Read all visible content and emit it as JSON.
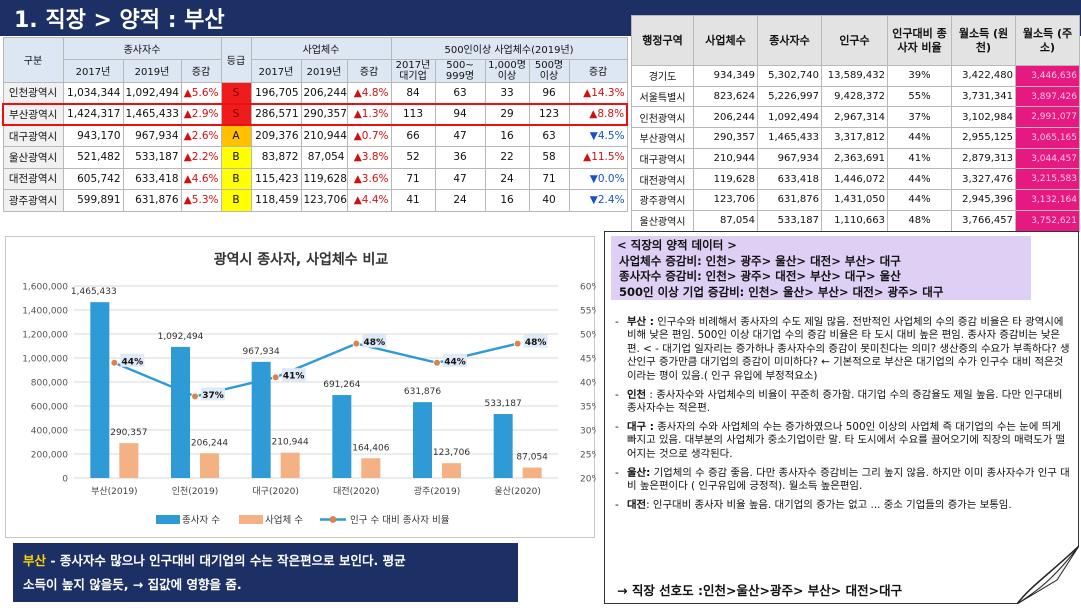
{
  "title": "1. 직장 > 양적 : 부산",
  "left_table": {
    "h_region": "구분",
    "h_employees": "종사자수",
    "h_grade": "등급",
    "h_businesses": "사업체수",
    "h_large": "500인이상 사업체수(2019년)",
    "h_y2017": "2017년",
    "h_y2019": "2019년",
    "h_change": "증감",
    "h_large_a": "2017년 대기업",
    "h_large_b": "500~ 999명",
    "h_large_c": "1,000명 이상",
    "h_large_d": "500명 이상",
    "rows": [
      {
        "region": "인천광역시",
        "e17": "1,034,344",
        "e19": "1,092,494",
        "ec": "▲5.6%",
        "grade": "S",
        "b17": "196,705",
        "b19": "206,244",
        "bc": "▲4.8%",
        "l1": "84",
        "l2": "63",
        "l3": "33",
        "l4": "96",
        "lc": "▲14.3%"
      },
      {
        "region": "부산광역시",
        "e17": "1,424,317",
        "e19": "1,465,433",
        "ec": "▲2.9%",
        "grade": "S",
        "b17": "286,571",
        "b19": "290,357",
        "bc": "▲1.3%",
        "l1": "113",
        "l2": "94",
        "l3": "29",
        "l4": "123",
        "lc": "▲8.8%"
      },
      {
        "region": "대구광역시",
        "e17": "943,170",
        "e19": "967,934",
        "ec": "▲2.6%",
        "grade": "A",
        "b17": "209,376",
        "b19": "210,944",
        "bc": "▲0.7%",
        "l1": "66",
        "l2": "47",
        "l3": "16",
        "l4": "63",
        "lc": "▼4.5%"
      },
      {
        "region": "울산광역시",
        "e17": "521,482",
        "e19": "533,187",
        "ec": "▲2.2%",
        "grade": "B",
        "b17": "83,872",
        "b19": "87,054",
        "bc": "▲3.8%",
        "l1": "52",
        "l2": "36",
        "l3": "22",
        "l4": "58",
        "lc": "▲11.5%"
      },
      {
        "region": "대전광역시",
        "e17": "605,742",
        "e19": "633,418",
        "ec": "▲4.6%",
        "grade": "B",
        "b17": "115,423",
        "b19": "119,628",
        "bc": "▲3.6%",
        "l1": "71",
        "l2": "47",
        "l3": "24",
        "l4": "71",
        "lc": "▼0.0%"
      },
      {
        "region": "광주광역시",
        "e17": "599,891",
        "e19": "631,876",
        "ec": "▲5.3%",
        "grade": "B",
        "b17": "118,459",
        "b19": "123,706",
        "bc": "▲4.4%",
        "l1": "41",
        "l2": "24",
        "l3": "16",
        "l4": "40",
        "lc": "▼2.4%"
      }
    ]
  },
  "right_table": {
    "headers": [
      "행정구역",
      "사업체수",
      "종사자수",
      "인구수",
      "인구대비 종사자 비율",
      "월소득 (원천)",
      "월소득 (주소)"
    ],
    "rows": [
      [
        "경기도",
        "934,349",
        "5,302,740",
        "13,589,432",
        "39%",
        "3,422,480",
        "3,446,636"
      ],
      [
        "서울특별시",
        "823,624",
        "5,226,997",
        "9,428,372",
        "55%",
        "3,731,341",
        "3,897,426"
      ],
      [
        "인천광역시",
        "206,244",
        "1,092,494",
        "2,967,314",
        "37%",
        "3,102,984",
        "2,991,077"
      ],
      [
        "부산광역시",
        "290,357",
        "1,465,433",
        "3,317,812",
        "44%",
        "2,955,125",
        "3,065,165"
      ],
      [
        "대구광역시",
        "210,944",
        "967,934",
        "2,363,691",
        "41%",
        "2,879,313",
        "3,044,457"
      ],
      [
        "대전광역시",
        "119,628",
        "633,418",
        "1,446,072",
        "44%",
        "3,327,476",
        "3,215,583"
      ],
      [
        "광주광역시",
        "123,706",
        "631,876",
        "1,431,050",
        "44%",
        "2,945,396",
        "3,132,164"
      ],
      [
        "울산광역시",
        "87,054",
        "533,187",
        "1,110,663",
        "48%",
        "3,766,457",
        "3,752,621"
      ]
    ]
  },
  "chart_data": {
    "type": "bar",
    "title": "광역시 종사자, 사업체수 비교",
    "categories": [
      "부산(2019)",
      "인천(2019)",
      "대구(2020)",
      "대전(2020)",
      "광주(2019)",
      "울산(2020)"
    ],
    "series": [
      {
        "name": "종사자 수",
        "type": "bar",
        "axis": "left",
        "values": [
          1465433,
          1092494,
          967934,
          691264,
          631876,
          533187
        ],
        "labels": [
          "1,465,433",
          "1,092,494",
          "967,934",
          "691,264",
          "631,876",
          "533,187"
        ],
        "color": "#2e9bd6"
      },
      {
        "name": "사업체 수",
        "type": "bar",
        "axis": "left",
        "values": [
          290357,
          206244,
          210944,
          164406,
          123706,
          87054
        ],
        "labels": [
          "290,357",
          "206,244",
          "210,944",
          "164,406",
          "123,706",
          "87,054"
        ],
        "color": "#f4b183"
      },
      {
        "name": "인구 수 대비 종사자 비율",
        "type": "line",
        "axis": "right",
        "values": [
          44,
          37,
          41,
          48,
          44,
          48
        ],
        "labels": [
          "44%",
          "37%",
          "41%",
          "48%",
          "44%",
          "48%"
        ],
        "color": "#2e9bd6"
      }
    ],
    "ylim_left": [
      0,
      1600000
    ],
    "yticks_left": [
      "0",
      "200,000",
      "400,000",
      "600,000",
      "800,000",
      "1,000,000",
      "1,200,000",
      "1,400,000",
      "1,600,000"
    ],
    "ylim_right": [
      20,
      60
    ],
    "yticks_right": [
      "20%",
      "25%",
      "30%",
      "35%",
      "40%",
      "45%",
      "50%",
      "55%",
      "60%"
    ],
    "grid": true,
    "legend": "bottom"
  },
  "colors": {
    "title_bg": "#1c3066",
    "highlight": "#e81010",
    "pink": "#e5197f",
    "memo_top": "#ddd0f4"
  },
  "note": {
    "highlight": "부산",
    "line1": " - 종사자수 많으나 인구대비 대기업의 수는 작은편으로 보인다. 평균",
    "line2": "소득이 높지 않을듯, → 집값에 영향을 줌."
  },
  "memo": {
    "top1": "< 직장의 양적 데이터 >",
    "top2": "사업체수 증감비: 인천> 광주> 울산> 대전> 부산> 대구",
    "top3": "종사자수 증감비: 인천> 광주> 대전> 부산> 대구> 울산",
    "top4": "500인 이상 기업 증감비: 인천> 울산> 부산> 대전> 광주> 대구",
    "items": [
      {
        "label": "부산 :",
        "text": " 인구수와 비례해서 종사자의 수도 제일 많음. 전반적인 사업체의 수의 증감 비율은 타 광역시에 비해 낮은 편임. 500인 이상 대기업 수의 증감 비율은 타 도시 대비 높은 편임. 종사자 증감비는 낮은편. < - 대기업 일자리는 증가하나 종사자수의 증감이 못미친다는 의미? 생산증의 수요가 부족하다? 생산인구 증가만큼 대기업의 증감이 미미하다? ← 기본적으로 부산은 대기업의 수가 인구수 대비 적은것이라는 평이 있음.( 인구 유입에 부정적요소)"
      },
      {
        "label": "인천",
        "text": " : 종사자수와 사업체수의 비율이 꾸준히 증가함. 대기업 수의 증감율도 제일 높음. 다만 인구대비 종사자수는 적은편."
      },
      {
        "label": "대구 :",
        "text": " 종사자의 수와 사업체의 수는 증가하였으나 500인 이상의 사업체 즉 대기업의 수는 눈에 띄게 빠지고 있음. 대부분의 사업체가 중소기업이란 말. 타 도시에서 수요를 끌어오기에 직장의 매력도가 떨어지는 것으로 생각된다."
      },
      {
        "label": "울산:",
        "text": " 기업체의 수 증감 좋음. 다만 종사자수 증감비는 그리 높지 않음. 하지만 이미 종사자수가 인구 대비 높은편이다 ( 인구유입에 긍정적). 월소득 높은편임."
      },
      {
        "label": "대전",
        "text": ": 인구대비 종사자 비율 높음. 대기업의 증가는 없고 ... 중소 기업들의 증가는 보통임."
      }
    ],
    "bottom": "→ 직장 선호도 :인천>울산>광주> 부산> 대전>대구"
  }
}
